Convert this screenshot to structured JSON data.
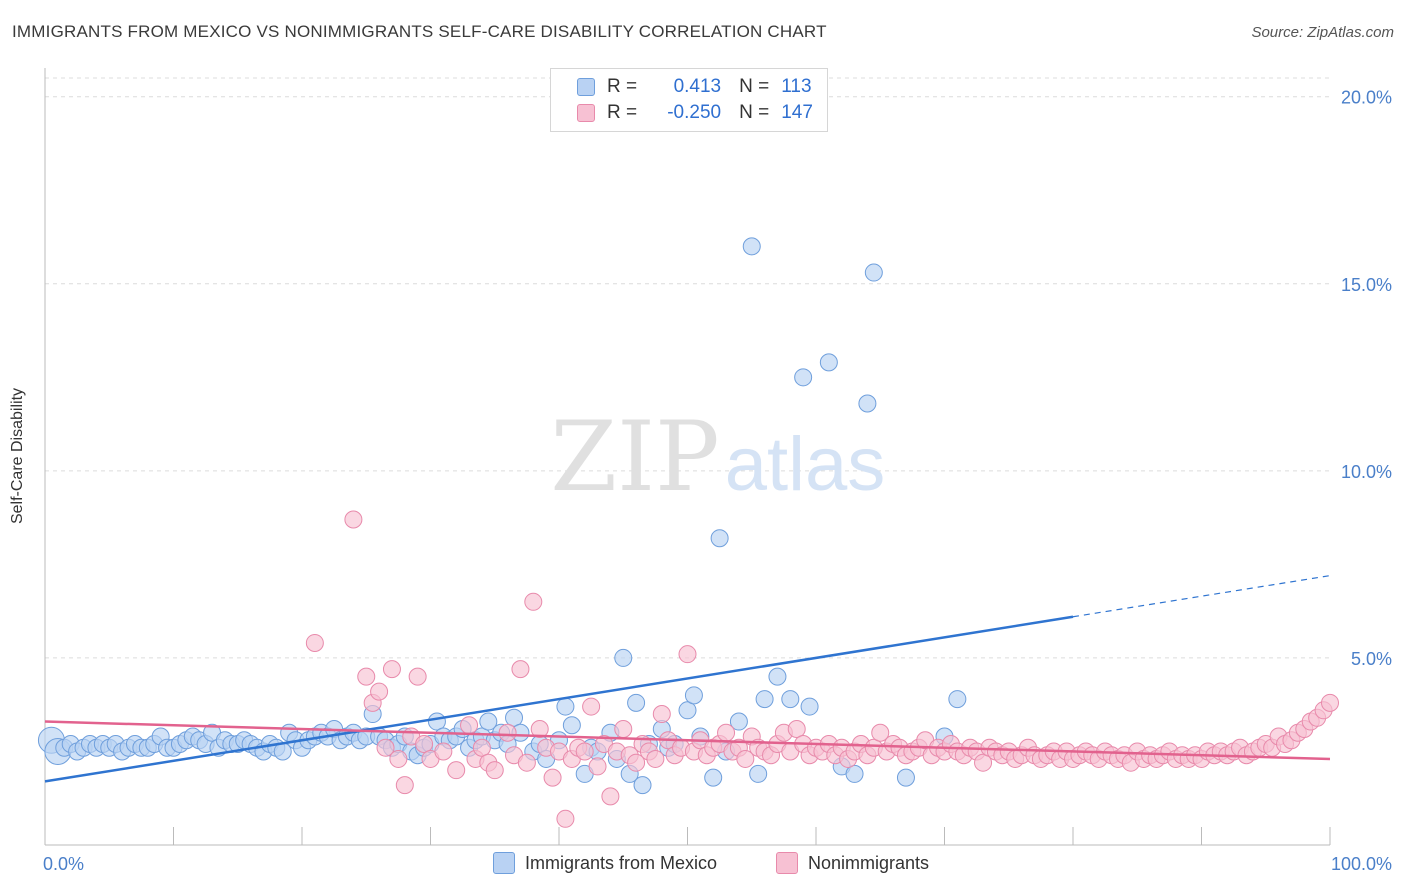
{
  "header": {
    "title": "IMMIGRANTS FROM MEXICO VS NONIMMIGRANTS SELF-CARE DISABILITY CORRELATION CHART",
    "source": "Source: ZipAtlas.com"
  },
  "watermark": {
    "zip": "ZIP",
    "atlas": "atlas"
  },
  "legend_top": {
    "rows": [
      {
        "r_label": "R =",
        "r_value": "0.413",
        "n_label": "N =",
        "n_value": "113"
      },
      {
        "r_label": "R =",
        "r_value": "-0.250",
        "n_label": "N =",
        "n_value": "147"
      }
    ]
  },
  "legend_bottom": {
    "items": [
      "Immigrants from Mexico",
      "Nonimmigrants"
    ]
  },
  "colors": {
    "blue_fill": "#b9d2f3",
    "blue_stroke": "#6f9fdc",
    "blue_line": "#2f74d0",
    "pink_fill": "#f7c1d3",
    "pink_stroke": "#e88aab",
    "pink_line": "#e2628e",
    "tick_text": "#4a7fc9",
    "grid": "#dcdcdc"
  },
  "chart_data": {
    "type": "scatter",
    "title": "IMMIGRANTS FROM MEXICO VS NONIMMIGRANTS SELF-CARE DISABILITY CORRELATION CHART",
    "xlabel": "",
    "ylabel": "Self-Care Disability",
    "xlim": [
      0,
      100
    ],
    "ylim": [
      0,
      20.5
    ],
    "x_ticks": [
      "0.0%",
      "100.0%"
    ],
    "y_ticks": [
      {
        "value": 5,
        "label": "5.0%"
      },
      {
        "value": 10,
        "label": "10.0%"
      },
      {
        "value": 15,
        "label": "15.0%"
      },
      {
        "value": 20,
        "label": "20.0%"
      }
    ],
    "grid": true,
    "legend": "top-center",
    "series": [
      {
        "name": "Immigrants from Mexico",
        "R": 0.413,
        "N": 113,
        "trend": {
          "x0": 0,
          "y0": 1.7,
          "x1": 80,
          "y1": 6.1,
          "dash_to_x": 100,
          "dash_to_y": 7.2
        },
        "points": [
          [
            0.5,
            2.8
          ],
          [
            1,
            2.5
          ],
          [
            1.5,
            2.6
          ],
          [
            2,
            2.7
          ],
          [
            2.5,
            2.5
          ],
          [
            3,
            2.6
          ],
          [
            3.5,
            2.7
          ],
          [
            4,
            2.6
          ],
          [
            4.5,
            2.7
          ],
          [
            5,
            2.6
          ],
          [
            5.5,
            2.7
          ],
          [
            6,
            2.5
          ],
          [
            6.5,
            2.6
          ],
          [
            7,
            2.7
          ],
          [
            7.5,
            2.6
          ],
          [
            8,
            2.6
          ],
          [
            8.5,
            2.7
          ],
          [
            9,
            2.9
          ],
          [
            9.5,
            2.6
          ],
          [
            10,
            2.6
          ],
          [
            10.5,
            2.7
          ],
          [
            11,
            2.8
          ],
          [
            11.5,
            2.9
          ],
          [
            12,
            2.8
          ],
          [
            12.5,
            2.7
          ],
          [
            13,
            3.0
          ],
          [
            13.5,
            2.6
          ],
          [
            14,
            2.8
          ],
          [
            14.5,
            2.7
          ],
          [
            15,
            2.7
          ],
          [
            15.5,
            2.8
          ],
          [
            16,
            2.7
          ],
          [
            16.5,
            2.6
          ],
          [
            17,
            2.5
          ],
          [
            17.5,
            2.7
          ],
          [
            18,
            2.6
          ],
          [
            18.5,
            2.5
          ],
          [
            19,
            3.0
          ],
          [
            19.5,
            2.8
          ],
          [
            20,
            2.6
          ],
          [
            20.5,
            2.8
          ],
          [
            21,
            2.9
          ],
          [
            21.5,
            3.0
          ],
          [
            22,
            2.9
          ],
          [
            22.5,
            3.1
          ],
          [
            23,
            2.8
          ],
          [
            23.5,
            2.9
          ],
          [
            24,
            3.0
          ],
          [
            24.5,
            2.8
          ],
          [
            25,
            2.9
          ],
          [
            25.5,
            3.5
          ],
          [
            26,
            2.9
          ],
          [
            26.5,
            2.8
          ],
          [
            27,
            2.6
          ],
          [
            27.5,
            2.7
          ],
          [
            28,
            2.9
          ],
          [
            28.5,
            2.5
          ],
          [
            29,
            2.4
          ],
          [
            29.5,
            2.6
          ],
          [
            30,
            2.7
          ],
          [
            30.5,
            3.3
          ],
          [
            31,
            2.9
          ],
          [
            31.5,
            2.8
          ],
          [
            32,
            2.9
          ],
          [
            32.5,
            3.1
          ],
          [
            33,
            2.6
          ],
          [
            33.5,
            2.8
          ],
          [
            34,
            2.9
          ],
          [
            34.5,
            3.3
          ],
          [
            35,
            2.8
          ],
          [
            35.5,
            3.0
          ],
          [
            36,
            2.7
          ],
          [
            36.5,
            3.4
          ],
          [
            37,
            3.0
          ],
          [
            38,
            2.5
          ],
          [
            38.5,
            2.7
          ],
          [
            39,
            2.3
          ],
          [
            40,
            2.8
          ],
          [
            40.5,
            3.7
          ],
          [
            41,
            3.2
          ],
          [
            42,
            1.9
          ],
          [
            42.5,
            2.6
          ],
          [
            43,
            2.5
          ],
          [
            44,
            3.0
          ],
          [
            44.5,
            2.3
          ],
          [
            45,
            5.0
          ],
          [
            45.5,
            1.9
          ],
          [
            46,
            3.8
          ],
          [
            46.5,
            1.6
          ],
          [
            47,
            2.7
          ],
          [
            48,
            3.1
          ],
          [
            48.5,
            2.6
          ],
          [
            49,
            2.7
          ],
          [
            50,
            3.6
          ],
          [
            50.5,
            4.0
          ],
          [
            51,
            2.9
          ],
          [
            52,
            1.8
          ],
          [
            52.5,
            8.2
          ],
          [
            53,
            2.5
          ],
          [
            54,
            3.3
          ],
          [
            55,
            16.0
          ],
          [
            55.5,
            1.9
          ],
          [
            56,
            3.9
          ],
          [
            57,
            4.5
          ],
          [
            58,
            3.9
          ],
          [
            59,
            12.5
          ],
          [
            59.5,
            3.7
          ],
          [
            61,
            12.9
          ],
          [
            62,
            2.1
          ],
          [
            63,
            1.9
          ],
          [
            64,
            11.8
          ],
          [
            64.5,
            15.3
          ],
          [
            67,
            1.8
          ],
          [
            70,
            2.9
          ],
          [
            71,
            3.9
          ]
        ]
      },
      {
        "name": "Nonimmigrants",
        "R": -0.25,
        "N": 147,
        "trend": {
          "x0": 0,
          "y0": 3.3,
          "x1": 100,
          "y1": 2.3
        },
        "points": [
          [
            21,
            5.4
          ],
          [
            24,
            8.7
          ],
          [
            25,
            4.5
          ],
          [
            25.5,
            3.8
          ],
          [
            26,
            4.1
          ],
          [
            26.5,
            2.6
          ],
          [
            27,
            4.7
          ],
          [
            27.5,
            2.3
          ],
          [
            28,
            1.6
          ],
          [
            28.5,
            2.9
          ],
          [
            29,
            4.5
          ],
          [
            29.5,
            2.7
          ],
          [
            30,
            2.3
          ],
          [
            31,
            2.5
          ],
          [
            32,
            2.0
          ],
          [
            33,
            3.2
          ],
          [
            33.5,
            2.3
          ],
          [
            34,
            2.6
          ],
          [
            34.5,
            2.2
          ],
          [
            35,
            2.0
          ],
          [
            36,
            3.0
          ],
          [
            36.5,
            2.4
          ],
          [
            37,
            4.7
          ],
          [
            37.5,
            2.2
          ],
          [
            38,
            6.5
          ],
          [
            38.5,
            3.1
          ],
          [
            39,
            2.6
          ],
          [
            39.5,
            1.8
          ],
          [
            40,
            2.5
          ],
          [
            40.5,
            0.7
          ],
          [
            41,
            2.3
          ],
          [
            41.5,
            2.6
          ],
          [
            42,
            2.5
          ],
          [
            42.5,
            3.7
          ],
          [
            43,
            2.1
          ],
          [
            43.5,
            2.7
          ],
          [
            44,
            1.3
          ],
          [
            44.5,
            2.5
          ],
          [
            45,
            3.1
          ],
          [
            45.5,
            2.4
          ],
          [
            46,
            2.2
          ],
          [
            46.5,
            2.7
          ],
          [
            47,
            2.5
          ],
          [
            47.5,
            2.3
          ],
          [
            48,
            3.5
          ],
          [
            48.5,
            2.8
          ],
          [
            49,
            2.4
          ],
          [
            49.5,
            2.6
          ],
          [
            50,
            5.1
          ],
          [
            50.5,
            2.5
          ],
          [
            51,
            2.8
          ],
          [
            51.5,
            2.4
          ],
          [
            52,
            2.6
          ],
          [
            52.5,
            2.7
          ],
          [
            53,
            3.0
          ],
          [
            53.5,
            2.5
          ],
          [
            54,
            2.6
          ],
          [
            54.5,
            2.3
          ],
          [
            55,
            2.9
          ],
          [
            55.5,
            2.6
          ],
          [
            56,
            2.5
          ],
          [
            56.5,
            2.4
          ],
          [
            57,
            2.7
          ],
          [
            57.5,
            3.0
          ],
          [
            58,
            2.5
          ],
          [
            58.5,
            3.1
          ],
          [
            59,
            2.7
          ],
          [
            59.5,
            2.4
          ],
          [
            60,
            2.6
          ],
          [
            60.5,
            2.5
          ],
          [
            61,
            2.7
          ],
          [
            61.5,
            2.4
          ],
          [
            62,
            2.6
          ],
          [
            62.5,
            2.3
          ],
          [
            63,
            2.5
          ],
          [
            63.5,
            2.7
          ],
          [
            64,
            2.4
          ],
          [
            64.5,
            2.6
          ],
          [
            65,
            3.0
          ],
          [
            65.5,
            2.5
          ],
          [
            66,
            2.7
          ],
          [
            66.5,
            2.6
          ],
          [
            67,
            2.4
          ],
          [
            67.5,
            2.5
          ],
          [
            68,
            2.6
          ],
          [
            68.5,
            2.8
          ],
          [
            69,
            2.4
          ],
          [
            69.5,
            2.6
          ],
          [
            70,
            2.5
          ],
          [
            70.5,
            2.7
          ],
          [
            71,
            2.5
          ],
          [
            71.5,
            2.4
          ],
          [
            72,
            2.6
          ],
          [
            72.5,
            2.5
          ],
          [
            73,
            2.2
          ],
          [
            73.5,
            2.6
          ],
          [
            74,
            2.5
          ],
          [
            74.5,
            2.4
          ],
          [
            75,
            2.5
          ],
          [
            75.5,
            2.3
          ],
          [
            76,
            2.4
          ],
          [
            76.5,
            2.6
          ],
          [
            77,
            2.4
          ],
          [
            77.5,
            2.3
          ],
          [
            78,
            2.4
          ],
          [
            78.5,
            2.5
          ],
          [
            79,
            2.3
          ],
          [
            79.5,
            2.5
          ],
          [
            80,
            2.3
          ],
          [
            80.5,
            2.4
          ],
          [
            81,
            2.5
          ],
          [
            81.5,
            2.4
          ],
          [
            82,
            2.3
          ],
          [
            82.5,
            2.5
          ],
          [
            83,
            2.4
          ],
          [
            83.5,
            2.3
          ],
          [
            84,
            2.4
          ],
          [
            84.5,
            2.2
          ],
          [
            85,
            2.5
          ],
          [
            85.5,
            2.3
          ],
          [
            86,
            2.4
          ],
          [
            86.5,
            2.3
          ],
          [
            87,
            2.4
          ],
          [
            87.5,
            2.5
          ],
          [
            88,
            2.3
          ],
          [
            88.5,
            2.4
          ],
          [
            89,
            2.3
          ],
          [
            89.5,
            2.4
          ],
          [
            90,
            2.3
          ],
          [
            90.5,
            2.5
          ],
          [
            91,
            2.4
          ],
          [
            91.5,
            2.5
          ],
          [
            92,
            2.4
          ],
          [
            92.5,
            2.5
          ],
          [
            93,
            2.6
          ],
          [
            93.5,
            2.4
          ],
          [
            94,
            2.5
          ],
          [
            94.5,
            2.6
          ],
          [
            95,
            2.7
          ],
          [
            95.5,
            2.6
          ],
          [
            96,
            2.9
          ],
          [
            96.5,
            2.7
          ],
          [
            97,
            2.8
          ],
          [
            97.5,
            3.0
          ],
          [
            98,
            3.1
          ],
          [
            98.5,
            3.3
          ],
          [
            99,
            3.4
          ],
          [
            99.5,
            3.6
          ],
          [
            100,
            3.8
          ]
        ]
      }
    ]
  }
}
